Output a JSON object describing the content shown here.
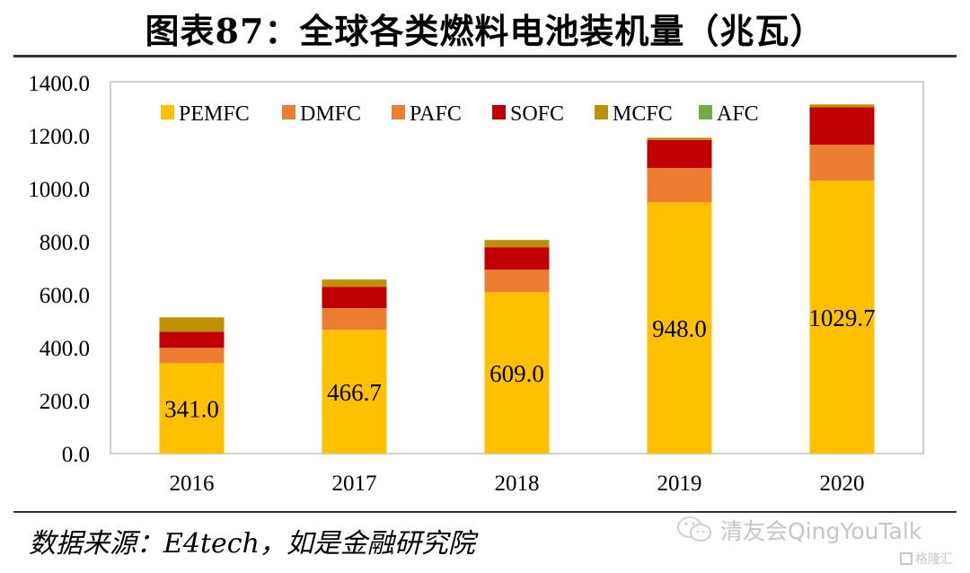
{
  "header": {
    "title": "图表87：全球各类燃料电池装机量（兆瓦）"
  },
  "footer": {
    "source": "数据来源：E4tech，如是金融研究院",
    "watermark": "清友会QingYouTalk",
    "watermark2": "格隆汇"
  },
  "chart_data": {
    "type": "bar",
    "stacked": true,
    "title": "全球各类燃料电池装机量（兆瓦）",
    "xlabel": "",
    "ylabel": "",
    "ylim": [
      0,
      1400
    ],
    "yticks": [
      "0.0",
      "200.0",
      "400.0",
      "600.0",
      "800.0",
      "1000.0",
      "1200.0",
      "1400.0"
    ],
    "ytick_values": [
      0,
      200,
      400,
      600,
      800,
      1000,
      1200,
      1400
    ],
    "grid": false,
    "legend_position": "top",
    "categories": [
      "2016",
      "2017",
      "2018",
      "2019",
      "2020"
    ],
    "series": [
      {
        "name": "PEMFC",
        "color": "#FFC000",
        "values": [
          341.0,
          466.7,
          609.0,
          948.0,
          1029.7
        ],
        "labels": [
          "341.0",
          "466.7",
          "609.0",
          "948.0",
          "1029.7"
        ]
      },
      {
        "name": "DMFC",
        "color": "#ED7D31",
        "values": [
          58,
          82,
          85,
          130,
          136
        ]
      },
      {
        "name": "PAFC",
        "color": "#ED7D31",
        "values": [
          0,
          0,
          0,
          0,
          0
        ]
      },
      {
        "name": "SOFC",
        "color": "#C00000",
        "values": [
          61,
          81,
          85,
          105,
          141
        ]
      },
      {
        "name": "MCFC",
        "color": "#BF9000",
        "values": [
          54,
          27,
          27,
          9,
          11
        ]
      },
      {
        "name": "AFC",
        "color": "#70AD47",
        "values": [
          0,
          0,
          0,
          0,
          0
        ]
      }
    ]
  }
}
